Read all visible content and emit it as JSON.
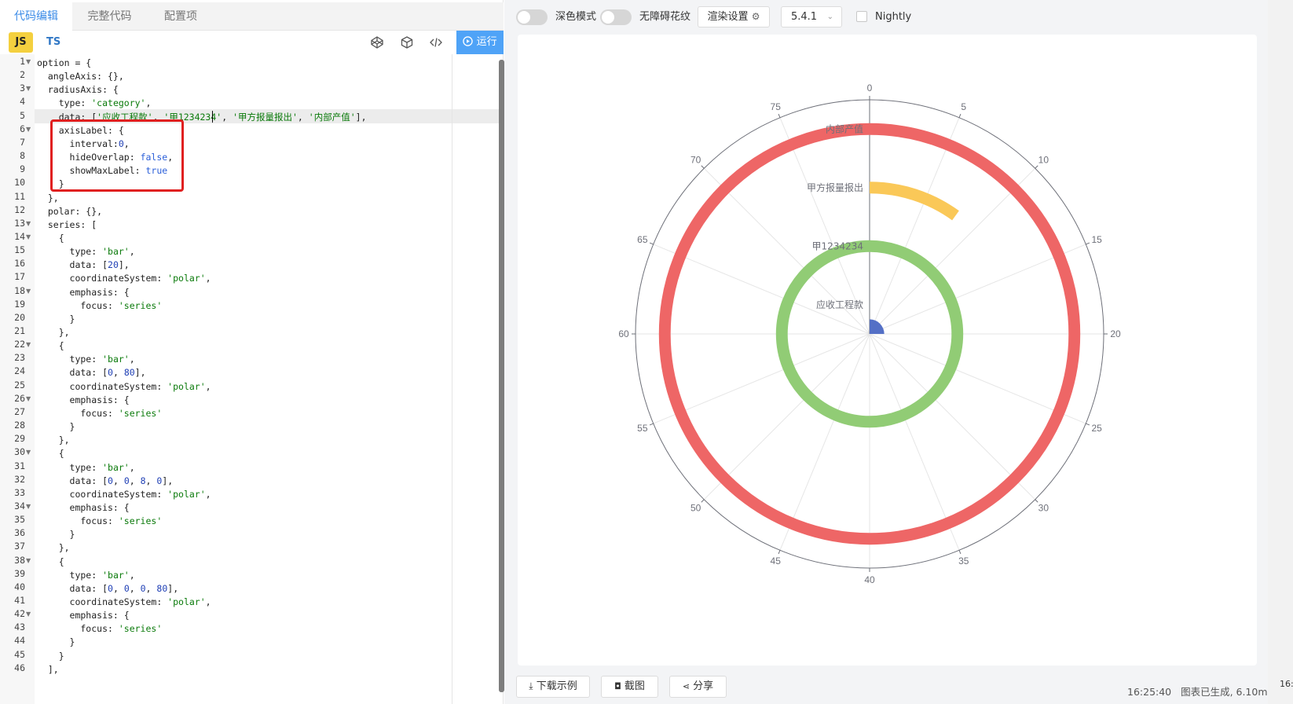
{
  "editor": {
    "tabs": [
      "代码编辑",
      "完整代码",
      "配置项"
    ],
    "lang_js": "JS",
    "lang_ts": "TS",
    "run_label": "运行",
    "code_lines": [
      [
        {
          "t": "option = {"
        }
      ],
      [
        {
          "t": "  angleAxis: {},"
        }
      ],
      [
        {
          "t": "  radiusAxis: {"
        }
      ],
      [
        {
          "t": "    type: "
        },
        {
          "t": "'category'",
          "c": "k"
        },
        {
          "t": ","
        }
      ],
      [
        {
          "t": "    data: ["
        },
        {
          "t": "'应收工程款'",
          "c": "k"
        },
        {
          "t": ", "
        },
        {
          "t": "'甲1234234'",
          "c": "k"
        },
        {
          "t": ", "
        },
        {
          "t": "'甲方报量报出'",
          "c": "k"
        },
        {
          "t": ", "
        },
        {
          "t": "'内部产值'",
          "c": "k"
        },
        {
          "t": "],"
        }
      ],
      [
        {
          "t": "    axisLabel: {"
        }
      ],
      [
        {
          "t": "      interval:"
        },
        {
          "t": "0",
          "c": "n"
        },
        {
          "t": ","
        }
      ],
      [
        {
          "t": "      hideOverlap: "
        },
        {
          "t": "false",
          "c": "b"
        },
        {
          "t": ","
        }
      ],
      [
        {
          "t": "      showMaxLabel: "
        },
        {
          "t": "true",
          "c": "b"
        }
      ],
      [
        {
          "t": "    }"
        }
      ],
      [
        {
          "t": "  },"
        }
      ],
      [
        {
          "t": "  polar: {},"
        }
      ],
      [
        {
          "t": "  series: ["
        }
      ],
      [
        {
          "t": "    {"
        }
      ],
      [
        {
          "t": "      type: "
        },
        {
          "t": "'bar'",
          "c": "k"
        },
        {
          "t": ","
        }
      ],
      [
        {
          "t": "      data: ["
        },
        {
          "t": "20",
          "c": "n"
        },
        {
          "t": "],"
        }
      ],
      [
        {
          "t": "      coordinateSystem: "
        },
        {
          "t": "'polar'",
          "c": "k"
        },
        {
          "t": ","
        }
      ],
      [
        {
          "t": "      emphasis: {"
        }
      ],
      [
        {
          "t": "        focus: "
        },
        {
          "t": "'series'",
          "c": "k"
        }
      ],
      [
        {
          "t": "      }"
        }
      ],
      [
        {
          "t": "    },"
        }
      ],
      [
        {
          "t": "    {"
        }
      ],
      [
        {
          "t": "      type: "
        },
        {
          "t": "'bar'",
          "c": "k"
        },
        {
          "t": ","
        }
      ],
      [
        {
          "t": "      data: ["
        },
        {
          "t": "0",
          "c": "n"
        },
        {
          "t": ", "
        },
        {
          "t": "80",
          "c": "n"
        },
        {
          "t": "],"
        }
      ],
      [
        {
          "t": "      coordinateSystem: "
        },
        {
          "t": "'polar'",
          "c": "k"
        },
        {
          "t": ","
        }
      ],
      [
        {
          "t": "      emphasis: {"
        }
      ],
      [
        {
          "t": "        focus: "
        },
        {
          "t": "'series'",
          "c": "k"
        }
      ],
      [
        {
          "t": "      }"
        }
      ],
      [
        {
          "t": "    },"
        }
      ],
      [
        {
          "t": "    {"
        }
      ],
      [
        {
          "t": "      type: "
        },
        {
          "t": "'bar'",
          "c": "k"
        },
        {
          "t": ","
        }
      ],
      [
        {
          "t": "      data: ["
        },
        {
          "t": "0",
          "c": "n"
        },
        {
          "t": ", "
        },
        {
          "t": "0",
          "c": "n"
        },
        {
          "t": ", "
        },
        {
          "t": "8",
          "c": "n"
        },
        {
          "t": ", "
        },
        {
          "t": "0",
          "c": "n"
        },
        {
          "t": "],"
        }
      ],
      [
        {
          "t": "      coordinateSystem: "
        },
        {
          "t": "'polar'",
          "c": "k"
        },
        {
          "t": ","
        }
      ],
      [
        {
          "t": "      emphasis: {"
        }
      ],
      [
        {
          "t": "        focus: "
        },
        {
          "t": "'series'",
          "c": "k"
        }
      ],
      [
        {
          "t": "      }"
        }
      ],
      [
        {
          "t": "    },"
        }
      ],
      [
        {
          "t": "    {"
        }
      ],
      [
        {
          "t": "      type: "
        },
        {
          "t": "'bar'",
          "c": "k"
        },
        {
          "t": ","
        }
      ],
      [
        {
          "t": "      data: ["
        },
        {
          "t": "0",
          "c": "n"
        },
        {
          "t": ", "
        },
        {
          "t": "0",
          "c": "n"
        },
        {
          "t": ", "
        },
        {
          "t": "0",
          "c": "n"
        },
        {
          "t": ", "
        },
        {
          "t": "80",
          "c": "n"
        },
        {
          "t": "],"
        }
      ],
      [
        {
          "t": "      coordinateSystem: "
        },
        {
          "t": "'polar'",
          "c": "k"
        },
        {
          "t": ","
        }
      ],
      [
        {
          "t": "      emphasis: {"
        }
      ],
      [
        {
          "t": "        focus: "
        },
        {
          "t": "'series'",
          "c": "k"
        }
      ],
      [
        {
          "t": "      }"
        }
      ],
      [
        {
          "t": "    }"
        }
      ],
      [
        {
          "t": "  ],"
        }
      ]
    ],
    "fold_lines": [
      1,
      3,
      6,
      13,
      14,
      18,
      22,
      26,
      30,
      34,
      38,
      42
    ]
  },
  "preview": {
    "dark_mode_label": "深色模式",
    "accessible_label": "无障碍花纹",
    "render_settings_label": "渲染设置",
    "version": "5.4.1",
    "nightly_label": "Nightly",
    "download_label": "下载示例",
    "screenshot_label": "截图",
    "share_label": "分享",
    "status_time": "16:25:40",
    "status_text": "图表已生成, 6.10ms",
    "edge_time": "16:"
  },
  "chart_data": {
    "type": "polar-bar",
    "angle_axis": {
      "min": 0,
      "max": 80,
      "ticks": [
        0,
        5,
        10,
        15,
        20,
        25,
        30,
        35,
        40,
        45,
        50,
        55,
        60,
        65,
        70,
        75
      ],
      "clockwise": true
    },
    "radius_axis": {
      "type": "category",
      "categories": [
        "应收工程款",
        "甲1234234",
        "甲方报量报出",
        "内部产值"
      ]
    },
    "series": [
      {
        "values": [
          20
        ],
        "color": "#5470c6"
      },
      {
        "values": [
          0,
          80
        ],
        "color": "#91cc75"
      },
      {
        "values": [
          0,
          0,
          8,
          0
        ],
        "color": "#fac858"
      },
      {
        "values": [
          0,
          0,
          0,
          80
        ],
        "color": "#ee6666"
      }
    ]
  }
}
